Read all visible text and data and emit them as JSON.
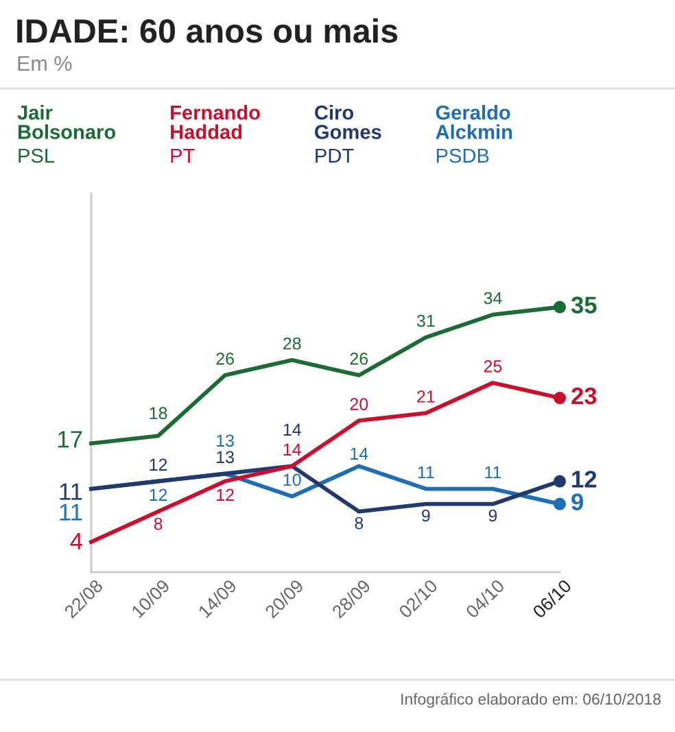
{
  "chart_data": {
    "type": "line",
    "title": "IDADE: 60 anos ou mais",
    "subtitle": "Em %",
    "categories": [
      "22/08",
      "10/09",
      "14/09",
      "20/09",
      "28/09",
      "02/10",
      "04/10",
      "06/10"
    ],
    "series": [
      {
        "name": "Jair Bolsonaro\nPSL",
        "color": "#1c6b34",
        "values": [
          17,
          18,
          26,
          28,
          26,
          31,
          34,
          35
        ]
      },
      {
        "name": "Fernando Haddad\nPT",
        "color": "#c8102e",
        "values": [
          4,
          8,
          12,
          14,
          20,
          21,
          25,
          23
        ]
      },
      {
        "name": "Ciro Gomes\nPDT",
        "color": "#22396b",
        "values": [
          11,
          12,
          13,
          14,
          8,
          9,
          9,
          12
        ]
      },
      {
        "name": "Geraldo Alckmin\nPSDB",
        "color": "#1f6db5",
        "values": [
          11,
          12,
          13,
          10,
          14,
          11,
          11,
          9
        ]
      }
    ],
    "ylim": [
      0,
      50
    ],
    "tick_labels": "x",
    "data_labels": true,
    "legend": "top",
    "line_style": "solid",
    "annotations": [
      "Infográfico elaborado em: 06/10/2018"
    ]
  }
}
